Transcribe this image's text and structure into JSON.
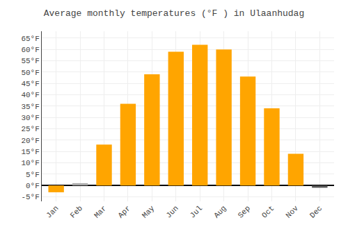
{
  "chart_data": {
    "type": "bar",
    "title": "Average monthly temperatures (°F ) in Ulaanhudag",
    "categories": [
      "Jan",
      "Feb",
      "Mar",
      "Apr",
      "May",
      "Jun",
      "Jul",
      "Aug",
      "Sep",
      "Oct",
      "Nov",
      "Dec"
    ],
    "values": [
      -3,
      1,
      18,
      36,
      49,
      59,
      62,
      60,
      48,
      34,
      14,
      -1
    ],
    "colors": [
      "#FFA500",
      "#AAAAAA",
      "#FFA500",
      "#FFA500",
      "#FFA500",
      "#FFA500",
      "#FFA500",
      "#FFA500",
      "#FFA500",
      "#FFA500",
      "#FFA500",
      "#555555"
    ],
    "ylim": [
      -7,
      68
    ],
    "yticks": [
      {
        "value": -5,
        "label": "-5°F"
      },
      {
        "value": 0,
        "label": "0°F"
      },
      {
        "value": 5,
        "label": "5°F"
      },
      {
        "value": 10,
        "label": "10°F"
      },
      {
        "value": 15,
        "label": "15°F"
      },
      {
        "value": 20,
        "label": "20°F"
      },
      {
        "value": 25,
        "label": "25°F"
      },
      {
        "value": 30,
        "label": "30°F"
      },
      {
        "value": 35,
        "label": "35°F"
      },
      {
        "value": 40,
        "label": "40°F"
      },
      {
        "value": 45,
        "label": "45°F"
      },
      {
        "value": 50,
        "label": "50°F"
      },
      {
        "value": 55,
        "label": "55°F"
      },
      {
        "value": 60,
        "label": "60°F"
      },
      {
        "value": 65,
        "label": "65°F"
      }
    ],
    "grid": true
  }
}
